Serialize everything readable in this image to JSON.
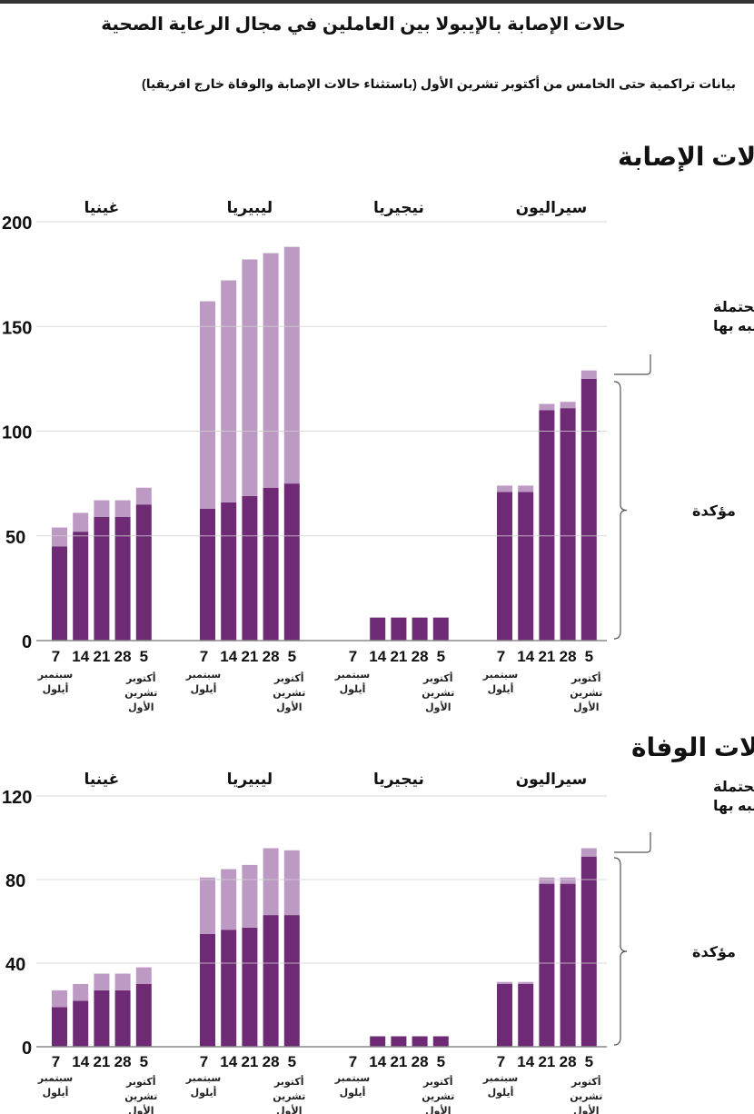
{
  "title": "حالات الإصابة بالإيبولا بين العاملين في مجال الرعاية الصحية",
  "subtitle": "بيانات تراكمية حتى الخامس من أكتوبر تشرين الأول (باستثناء حالات الإصابة والوفاة خارج افريقيا)",
  "colors": {
    "confirmed": "#6e2a74",
    "probable": "#bc9ac3",
    "grid": "#d0d0d0"
  },
  "legend": {
    "probable": "محتملة ومشتبه بها",
    "confirmed": "مؤكدة"
  },
  "date_labels": [
    "7",
    "14",
    "21",
    "28",
    "5"
  ],
  "month_labels": {
    "september": "سبتمبر أيلول",
    "october": "أكتوبر تشرين الأول"
  },
  "chart_data": [
    {
      "type": "bar",
      "stacked": true,
      "title": "حالات الإصابة",
      "ylim": [
        0,
        200
      ],
      "yticks": [
        0,
        50,
        100,
        150,
        200
      ],
      "grid": true,
      "groups": [
        "غينيا",
        "ليبيريا",
        "نيجيريا",
        "سيراليون"
      ],
      "categories": [
        "7",
        "14",
        "21",
        "28",
        "5"
      ],
      "series": [
        {
          "name": "مؤكدة",
          "values": [
            [
              45,
              52,
              59,
              59,
              65
            ],
            [
              63,
              66,
              69,
              73,
              75
            ],
            [
              null,
              11,
              11,
              11,
              11
            ],
            [
              71,
              71,
              110,
              111,
              125
            ]
          ]
        },
        {
          "name": "محتملة ومشتبه بها",
          "values": [
            [
              9,
              9,
              8,
              8,
              8
            ],
            [
              99,
              106,
              113,
              112,
              113
            ],
            [
              null,
              0,
              0,
              0,
              0
            ],
            [
              3,
              3,
              3,
              3,
              4
            ]
          ]
        }
      ]
    },
    {
      "type": "bar",
      "stacked": true,
      "title": "حالات الوفاة",
      "ylim": [
        0,
        120
      ],
      "yticks": [
        0,
        40,
        80,
        120
      ],
      "grid": true,
      "groups": [
        "غينيا",
        "ليبيريا",
        "نيجيريا",
        "سيراليون"
      ],
      "categories": [
        "7",
        "14",
        "21",
        "28",
        "5"
      ],
      "series": [
        {
          "name": "مؤكدة",
          "values": [
            [
              19,
              22,
              27,
              27,
              30
            ],
            [
              54,
              56,
              57,
              63,
              63
            ],
            [
              null,
              5,
              5,
              5,
              5
            ],
            [
              30,
              30,
              78,
              78,
              91
            ]
          ]
        },
        {
          "name": "محتملة ومشتبه بها",
          "values": [
            [
              8,
              8,
              8,
              8,
              8
            ],
            [
              27,
              29,
              30,
              32,
              31
            ],
            [
              null,
              0,
              0,
              0,
              0
            ],
            [
              1,
              1,
              3,
              3,
              4
            ]
          ]
        }
      ]
    }
  ]
}
